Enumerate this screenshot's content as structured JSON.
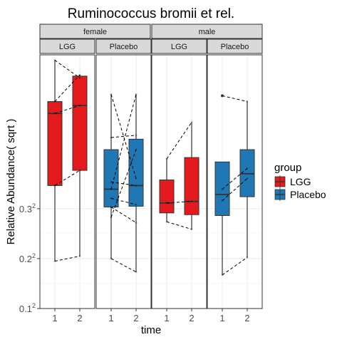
{
  "chart_data": {
    "type": "boxplot",
    "title": "Ruminococcus bromii et rel.",
    "xlabel": "time",
    "ylabel": "Relative Abundance( sqrt )",
    "y_scale": "sqrt",
    "y_ticks": [
      {
        "base": "0.1",
        "exp": "2",
        "value": 0.1
      },
      {
        "base": "0.2",
        "exp": "2",
        "value": 0.2
      },
      {
        "base": "0.3",
        "exp": "2",
        "value": 0.3
      }
    ],
    "ylim": [
      0.01,
      0.37
    ],
    "x_categories": [
      "1",
      "2"
    ],
    "grid": true,
    "facets_outer": [
      "female",
      "male"
    ],
    "facets_inner": [
      "LGG",
      "Placebo"
    ],
    "legend": {
      "title": "group",
      "position": "right",
      "entries": [
        {
          "label": "LGG",
          "color": "#E41A1C"
        },
        {
          "label": "Placebo",
          "color": "#1F78B4"
        }
      ]
    },
    "panels": [
      {
        "sex": "female",
        "group": "LGG",
        "color": "#E41A1C",
        "boxes": [
          {
            "time": "1",
            "min": 0.038,
            "q1": 0.12,
            "median": 0.241,
            "q3": 0.265,
            "max": 0.357
          },
          {
            "time": "2",
            "min": 0.042,
            "q1": 0.142,
            "median": 0.257,
            "q3": 0.32,
            "max": 0.323
          }
        ],
        "paired": [
          [
            0.357,
            0.316
          ],
          [
            0.241,
            0.257
          ],
          [
            0.12,
            0.142
          ],
          [
            0.038,
            0.042
          ],
          [
            0.265,
            0.323
          ]
        ],
        "outliers": []
      },
      {
        "sex": "female",
        "group": "Placebo",
        "color": "#1F78B4",
        "boxes": [
          {
            "time": "1",
            "min": 0.04,
            "q1": 0.092,
            "median": 0.115,
            "q3": 0.175,
            "max": 0.28
          },
          {
            "time": "2",
            "min": 0.03,
            "q1": 0.093,
            "median": 0.12,
            "q3": 0.193,
            "max": 0.28
          }
        ],
        "paired": [
          [
            0.28,
            0.13
          ],
          [
            0.196,
            0.2
          ],
          [
            0.115,
            0.28
          ],
          [
            0.125,
            0.12
          ],
          [
            0.103,
            0.095
          ],
          [
            0.08,
            0.175
          ],
          [
            0.04,
            0.03
          ],
          [
            0.092,
            0.074
          ]
        ],
        "outliers": []
      },
      {
        "sex": "male",
        "group": "LGG",
        "color": "#E41A1C",
        "boxes": [
          {
            "time": "1",
            "min": 0.075,
            "q1": 0.085,
            "median": 0.097,
            "q3": 0.128,
            "max": 0.16
          },
          {
            "time": "2",
            "min": 0.067,
            "q1": 0.083,
            "median": 0.099,
            "q3": 0.162,
            "max": 0.224
          }
        ],
        "paired": [
          [
            0.16,
            0.224
          ],
          [
            0.097,
            0.099
          ],
          [
            0.075,
            0.067
          ]
        ],
        "outliers": []
      },
      {
        "sex": "male",
        "group": "Placebo",
        "color": "#1F78B4",
        "boxes": [
          {
            "time": "1",
            "min": 0.028,
            "q1": 0.082,
            "median": 0.108,
            "q3": 0.155,
            "max": 0.155
          },
          {
            "time": "2",
            "min": 0.041,
            "q1": 0.105,
            "median": 0.137,
            "q3": 0.175,
            "max": 0.265
          }
        ],
        "paired": [
          [
            0.277,
            0.265
          ],
          [
            0.115,
            0.145
          ],
          [
            0.1,
            0.13
          ],
          [
            0.028,
            0.041
          ]
        ],
        "outliers": [
          {
            "time": "1",
            "y": 0.277
          }
        ]
      }
    ]
  }
}
